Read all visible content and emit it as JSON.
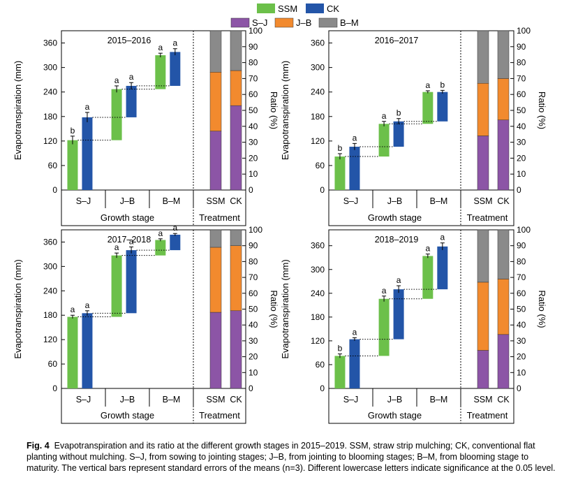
{
  "legend": {
    "growth": [
      {
        "label": "SSM",
        "color": "#6cc04a"
      },
      {
        "label": "CK",
        "color": "#2355a8"
      }
    ],
    "ratio": [
      {
        "label": "S–J",
        "color": "#8c55a6"
      },
      {
        "label": "J–B",
        "color": "#f28a2e"
      },
      {
        "label": "B–M",
        "color": "#8a8a8a"
      }
    ]
  },
  "caption": {
    "label": "Fig. 4",
    "text": "Evapotranspiration and its ratio at the different growth stages in 2015–2019.  SSM, straw strip mulching; CK, conventional flat planting without mulching.  S–J, from sowing to jointing stages; J–B, from jointing to blooming stages; B–M, from blooming stage to maturity.  The vertical bars represent standard errors of the means (n=3).  Different lowercase letters indicate significance at the 0.05 level."
  },
  "chart_data": [
    {
      "type": "bar",
      "title": "2015–2016",
      "ylabel": "Evapotranspiration (mm)",
      "y2label": "Ratio (%)",
      "xlabel": "Growth stage",
      "x2label": "Treatment",
      "ylim": [
        0,
        390
      ],
      "yticks": [
        0,
        60,
        120,
        180,
        240,
        300,
        360
      ],
      "y2lim": [
        0,
        100
      ],
      "y2ticks": [
        0,
        10,
        20,
        30,
        40,
        50,
        60,
        70,
        80,
        90,
        100
      ],
      "categories": [
        "S–J",
        "J–B",
        "B–M"
      ],
      "treatments": [
        "SSM",
        "CK"
      ],
      "series": [
        {
          "name": "SSM",
          "bottoms": [
            0,
            122,
            247
          ],
          "tops": [
            122,
            247,
            330
          ],
          "errors": [
            10,
            8,
            5
          ],
          "letters": [
            "b",
            "a",
            "a"
          ]
        },
        {
          "name": "CK",
          "bottoms": [
            0,
            178,
            255
          ],
          "tops": [
            178,
            255,
            338
          ],
          "errors": [
            12,
            8,
            8
          ],
          "letters": [
            "a",
            "a",
            "a"
          ]
        }
      ],
      "ratio": [
        {
          "treatment": "SSM",
          "S–J": 37,
          "J–B": 37,
          "B–M": 26
        },
        {
          "treatment": "CK",
          "S–J": 53,
          "J–B": 22,
          "B–M": 25
        }
      ]
    },
    {
      "type": "bar",
      "title": "2016–2017",
      "ylabel": "Evapotranspiration (mm)",
      "y2label": "Ratio (%)",
      "xlabel": "Growth stage",
      "x2label": "Treatment",
      "ylim": [
        0,
        390
      ],
      "yticks": [
        0,
        60,
        120,
        180,
        240,
        300,
        360
      ],
      "y2lim": [
        0,
        100
      ],
      "y2ticks": [
        0,
        10,
        20,
        30,
        40,
        50,
        60,
        70,
        80,
        90,
        100
      ],
      "categories": [
        "S–J",
        "J–B",
        "B–M"
      ],
      "treatments": [
        "SSM",
        "CK"
      ],
      "series": [
        {
          "name": "SSM",
          "bottoms": [
            0,
            82,
            162
          ],
          "tops": [
            82,
            162,
            240
          ],
          "errors": [
            7,
            6,
            3
          ],
          "letters": [
            "b",
            "a",
            "a"
          ]
        },
        {
          "name": "CK",
          "bottoms": [
            0,
            106,
            168
          ],
          "tops": [
            106,
            168,
            240
          ],
          "errors": [
            8,
            7,
            4
          ],
          "letters": [
            "a",
            "b",
            "b"
          ]
        }
      ],
      "ratio": [
        {
          "treatment": "SSM",
          "S–J": 34,
          "J–B": 33,
          "B–M": 33
        },
        {
          "treatment": "CK",
          "S–J": 44,
          "J–B": 26,
          "B–M": 30
        }
      ]
    },
    {
      "type": "bar",
      "title": "2017–2018",
      "ylabel": "Evapotranspiration (mm)",
      "y2label": "Ratio (%)",
      "xlabel": "Growth stage",
      "x2label": "Treatment",
      "ylim": [
        0,
        390
      ],
      "yticks": [
        0,
        60,
        120,
        180,
        240,
        300,
        360
      ],
      "y2lim": [
        0,
        100
      ],
      "y2ticks": [
        0,
        10,
        20,
        30,
        40,
        50,
        60,
        70,
        80,
        90,
        100
      ],
      "categories": [
        "S–J",
        "J–B",
        "B–M"
      ],
      "treatments": [
        "SSM",
        "CK"
      ],
      "series": [
        {
          "name": "SSM",
          "bottoms": [
            0,
            176,
            327
          ],
          "tops": [
            176,
            327,
            365
          ],
          "errors": [
            4,
            6,
            3
          ],
          "letters": [
            "a",
            "a",
            "a"
          ]
        },
        {
          "name": "CK",
          "bottoms": [
            0,
            185,
            340
          ],
          "tops": [
            185,
            340,
            378
          ],
          "errors": [
            6,
            8,
            3
          ],
          "letters": [
            "a",
            "a",
            "a"
          ]
        }
      ],
      "ratio": [
        {
          "treatment": "SSM",
          "S–J": 48,
          "J–B": 41,
          "B–M": 11
        },
        {
          "treatment": "CK",
          "S–J": 49,
          "J–B": 41,
          "B–M": 10
        }
      ]
    },
    {
      "type": "bar",
      "title": "2018–2019",
      "ylabel": "Evapotranspiration (mm)",
      "y2label": "Ratio (%)",
      "xlabel": "Growth stage",
      "x2label": "Treatment",
      "ylim": [
        0,
        400
      ],
      "yticks": [
        0,
        60,
        120,
        180,
        240,
        300,
        360
      ],
      "y2lim": [
        0,
        100
      ],
      "y2ticks": [
        0,
        10,
        20,
        30,
        40,
        50,
        60,
        70,
        80,
        90,
        100
      ],
      "categories": [
        "S–J",
        "J–B",
        "B–M"
      ],
      "treatments": [
        "SSM",
        "CK"
      ],
      "series": [
        {
          "name": "SSM",
          "bottoms": [
            0,
            82,
            226
          ],
          "tops": [
            82,
            226,
            334
          ],
          "errors": [
            5,
            7,
            5
          ],
          "letters": [
            "b",
            "a",
            "a"
          ]
        },
        {
          "name": "CK",
          "bottoms": [
            0,
            124,
            250
          ],
          "tops": [
            124,
            250,
            358
          ],
          "errors": [
            4,
            9,
            9
          ],
          "letters": [
            "a",
            "a",
            "a"
          ]
        }
      ],
      "ratio": [
        {
          "treatment": "SSM",
          "S–J": 24,
          "J–B": 43,
          "B–M": 33
        },
        {
          "treatment": "CK",
          "S–J": 34,
          "J–B": 35,
          "B–M": 31
        }
      ]
    }
  ]
}
